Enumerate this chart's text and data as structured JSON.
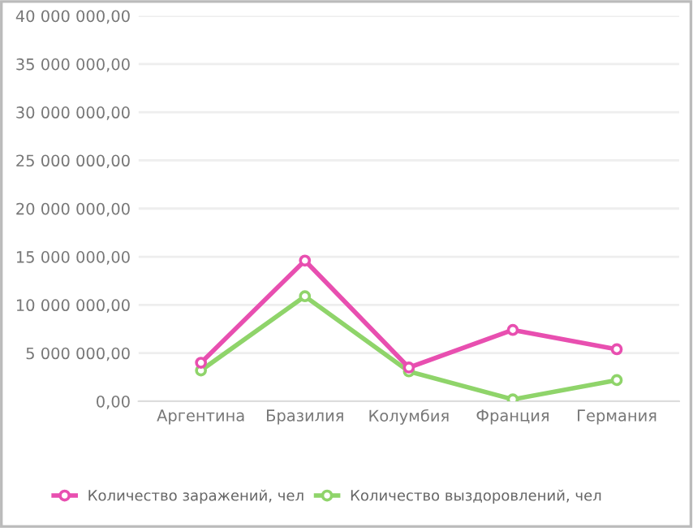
{
  "chart_data": {
    "type": "line",
    "categories": [
      "Аргентина",
      "Бразилия",
      "Колумбия",
      "Франция",
      "Германия"
    ],
    "series": [
      {
        "name": "Количество заражений, чел",
        "color": "#e84fb0",
        "values": [
          4000000,
          14600000,
          3500000,
          7400000,
          5400000
        ]
      },
      {
        "name": "Количество выздоровлений, чел",
        "color": "#8fd46a",
        "values": [
          3200000,
          10900000,
          3100000,
          200000,
          2200000
        ]
      }
    ],
    "ylim": [
      0,
      40000000
    ],
    "yticks": [
      {
        "value": 0,
        "label": "0,00"
      },
      {
        "value": 5000000,
        "label": "5 000 000,00"
      },
      {
        "value": 10000000,
        "label": "10 000 000,00"
      },
      {
        "value": 15000000,
        "label": "15 000 000,00"
      },
      {
        "value": 20000000,
        "label": "20 000 000,00"
      },
      {
        "value": 25000000,
        "label": "25 000 000,00"
      },
      {
        "value": 30000000,
        "label": "30 000 000,00"
      },
      {
        "value": 35000000,
        "label": "35 000 000,00"
      },
      {
        "value": 40000000,
        "label": "40 000 000,00"
      }
    ],
    "grid": "y",
    "legend": "bottom",
    "marker": "circle",
    "line_style": "solid"
  }
}
